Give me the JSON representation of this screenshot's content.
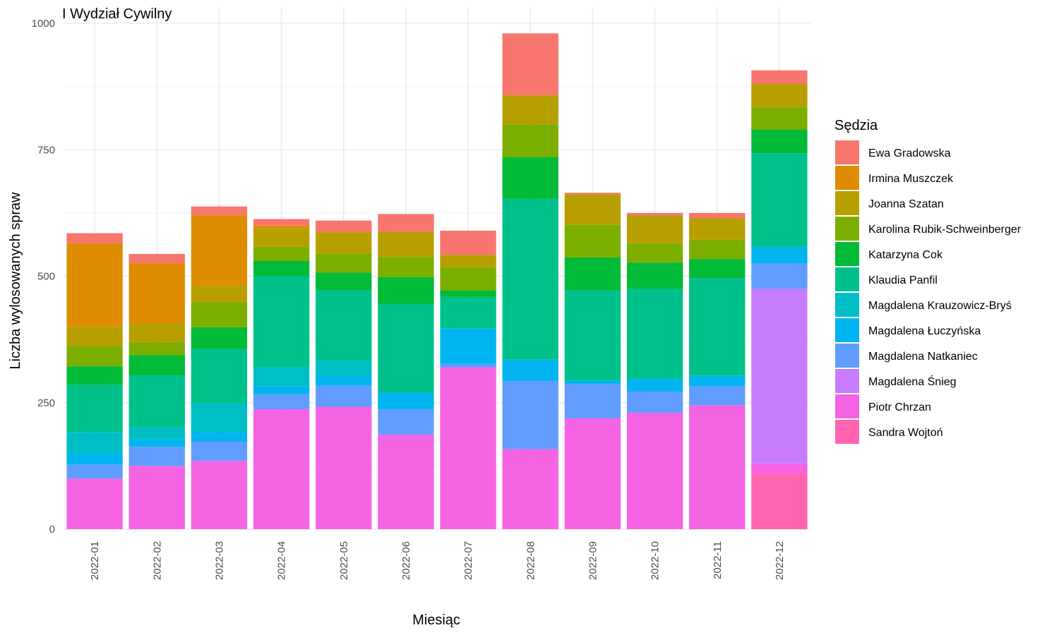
{
  "chart_data": {
    "type": "bar",
    "stacked": true,
    "title": "I Wydział Cywilny",
    "xlabel": "Miesiąc",
    "ylabel": "Liczba wylosowanych spraw",
    "ylim": [
      0,
      1000
    ],
    "yticks": [
      0,
      250,
      500,
      750,
      1000
    ],
    "grid": true,
    "legend_title": "Sędzia",
    "legend_position": "right",
    "categories": [
      "2022-01",
      "2022-02",
      "2022-03",
      "2022-04",
      "2022-05",
      "2022-06",
      "2022-07",
      "2022-08",
      "2022-09",
      "2022-10",
      "2022-11",
      "2022-12"
    ],
    "series": [
      {
        "name": "Ewa Gradowska",
        "color": "#F8766D",
        "values": [
          20,
          18,
          17,
          13,
          23,
          35,
          48,
          122,
          3,
          5,
          10,
          27
        ]
      },
      {
        "name": "Irmina Muszczek",
        "color": "#DE8C00",
        "values": [
          165,
          120,
          140,
          5,
          0,
          0,
          0,
          0,
          0,
          0,
          0,
          0
        ]
      },
      {
        "name": "Joanna Szatan",
        "color": "#B79F00",
        "values": [
          38,
          37,
          32,
          37,
          42,
          50,
          25,
          58,
          60,
          55,
          43,
          45
        ]
      },
      {
        "name": "Karolina Rubik-Schweinberger",
        "color": "#7CAE00",
        "values": [
          40,
          25,
          50,
          28,
          38,
          40,
          45,
          65,
          65,
          38,
          38,
          45
        ]
      },
      {
        "name": "Katarzyna Cok",
        "color": "#00BA38",
        "values": [
          37,
          40,
          42,
          30,
          35,
          53,
          13,
          82,
          65,
          52,
          38,
          47
        ]
      },
      {
        "name": "Klaudia Panfil",
        "color": "#00C08B",
        "values": [
          93,
          103,
          108,
          180,
          138,
          175,
          62,
          318,
          178,
          178,
          193,
          185
        ]
      },
      {
        "name": "Magdalena Krauzowicz-Bryś",
        "color": "#00BFC4",
        "values": [
          42,
          23,
          58,
          38,
          30,
          0,
          0,
          0,
          0,
          0,
          0,
          0
        ]
      },
      {
        "name": "Magdalena Łuczyńska",
        "color": "#00B4F0",
        "values": [
          22,
          15,
          18,
          15,
          20,
          33,
          70,
          42,
          7,
          25,
          20,
          33
        ]
      },
      {
        "name": "Magdalena Natkaniec",
        "color": "#619CFF",
        "values": [
          28,
          38,
          38,
          30,
          42,
          50,
          7,
          135,
          68,
          42,
          38,
          50
        ]
      },
      {
        "name": "Magdalena Śnieg",
        "color": "#C77CFF",
        "values": [
          0,
          0,
          0,
          0,
          0,
          0,
          0,
          0,
          0,
          0,
          0,
          345
        ]
      },
      {
        "name": "Piotr Chrzan",
        "color": "#F564E3",
        "values": [
          100,
          125,
          135,
          237,
          242,
          187,
          320,
          158,
          219,
          230,
          245,
          20
        ]
      },
      {
        "name": "Sandra Wojtoń",
        "color": "#FF64B0",
        "values": [
          0,
          0,
          0,
          0,
          0,
          0,
          0,
          0,
          0,
          0,
          0,
          110
        ]
      }
    ]
  }
}
